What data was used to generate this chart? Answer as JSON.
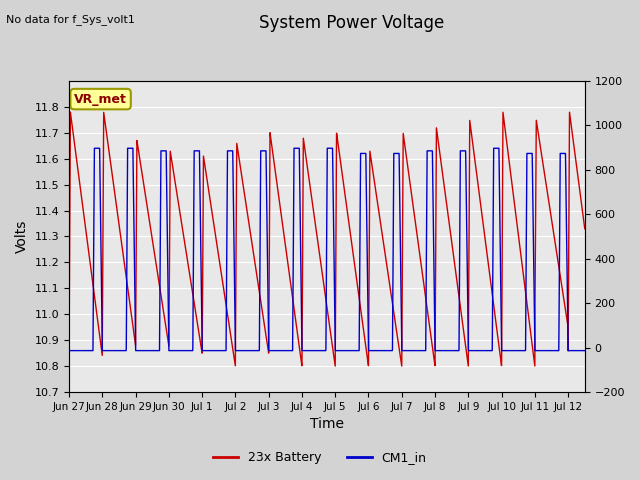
{
  "title": "System Power Voltage",
  "top_left_text": "No data for f_Sys_volt1",
  "annotation_text": "VR_met",
  "xlabel": "Time",
  "ylabel_left": "Volts",
  "ylim_left": [
    10.7,
    11.9
  ],
  "ylim_right": [
    -200,
    1200
  ],
  "yticks_left": [
    10.7,
    10.8,
    10.9,
    11.0,
    11.1,
    11.2,
    11.3,
    11.4,
    11.5,
    11.6,
    11.7,
    11.8
  ],
  "yticks_right": [
    -200,
    0,
    200,
    400,
    600,
    800,
    1000,
    1200
  ],
  "xtick_labels": [
    "Jun 27",
    "Jun 28",
    "Jun 29",
    "Jun 30",
    "Jul 1",
    "Jul 2",
    "Jul 3",
    "Jul 4",
    "Jul 5",
    "Jul 6",
    "Jul 7",
    "Jul 8",
    "Jul 9",
    "Jul 10",
    "Jul 11",
    "Jul 12"
  ],
  "xtick_positions": [
    0,
    1,
    2,
    3,
    4,
    5,
    6,
    7,
    8,
    9,
    10,
    11,
    12,
    13,
    14,
    15
  ],
  "xlim": [
    0,
    15.5
  ],
  "background_color": "#d3d3d3",
  "plot_bg_color": "#e8e8e8",
  "red_color": "#cc0000",
  "blue_color": "#0000cc",
  "legend_labels": [
    "23x Battery",
    "CM1_in"
  ],
  "red_peaks": [
    11.78,
    11.78,
    11.67,
    11.63,
    11.61,
    11.66,
    11.7,
    11.68,
    11.7,
    11.63,
    11.7,
    11.72,
    11.75,
    11.78,
    11.75
  ],
  "red_troughs": [
    10.84,
    10.88,
    10.88,
    10.85,
    10.8,
    10.85,
    10.8,
    10.8,
    10.8,
    10.8,
    10.8,
    10.8,
    10.8,
    10.8,
    10.95
  ],
  "blue_peaks": [
    11.64,
    11.64,
    11.63,
    11.63,
    11.63,
    11.63,
    11.64,
    11.64,
    11.62,
    11.62,
    11.63,
    11.63,
    11.64,
    11.62,
    11.62
  ],
  "blue_trough": 10.86,
  "period": 1.0,
  "n_cycles": 15,
  "total_x": 15.5
}
